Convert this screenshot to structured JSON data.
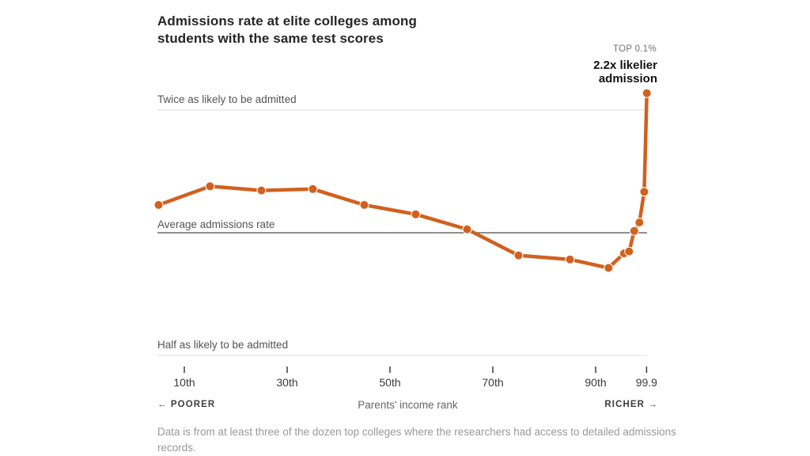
{
  "chart_data": {
    "type": "line",
    "title": "Admissions rate at elite colleges among students with the same test scores",
    "x": [
      5,
      15,
      25,
      35,
      45,
      55,
      65,
      75,
      85,
      92.5,
      95.5,
      96.5,
      97.5,
      98.5,
      99.45,
      99.95
    ],
    "values": [
      1.17,
      1.3,
      1.27,
      1.28,
      1.17,
      1.11,
      1.02,
      0.88,
      0.86,
      0.82,
      0.89,
      0.9,
      1.01,
      1.06,
      1.26,
      2.2
    ],
    "x_ticks": [
      {
        "value": 10,
        "label": "10th"
      },
      {
        "value": 30,
        "label": "30th"
      },
      {
        "value": 50,
        "label": "50th"
      },
      {
        "value": 70,
        "label": "70th"
      },
      {
        "value": 90,
        "label": "90th"
      },
      {
        "value": 99.9,
        "label": "99.9"
      }
    ],
    "reference_lines": [
      {
        "value": 2,
        "label": "Twice as likely to be admitted",
        "emphasis": false
      },
      {
        "value": 1,
        "label": "Average admissions rate",
        "emphasis": true
      },
      {
        "value": 0.5,
        "label": "Half as likely to be admitted",
        "emphasis": false
      }
    ],
    "point_annotation": {
      "eyebrow": "TOP 0.1%",
      "line1": "2.2x likelier",
      "line2": "admission"
    },
    "xlabel": "Parents' income rank",
    "x_direction_left": "← POORER",
    "x_direction_right": "RICHER →",
    "y_scale": "log2",
    "xlim": [
      4.5,
      100
    ],
    "ylim": [
      0.45,
      2.35
    ],
    "grid": "horizontal reference lines only",
    "legend": "none",
    "line_color": "#d2601e",
    "grid_color": "#dedede",
    "baseline_color": "#4c4c4c",
    "tick_color": "#3a3a3a"
  },
  "footnote": "Data is from at least three of the dozen top colleges where the researchers had access to detailed admissions records."
}
